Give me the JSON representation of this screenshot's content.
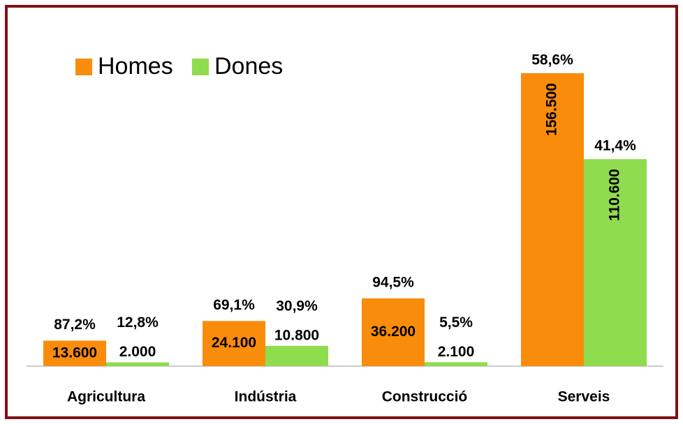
{
  "chart_data": {
    "type": "bar",
    "categories": [
      "Agricultura",
      "Indústria",
      "Construcció",
      "Serveis"
    ],
    "series": [
      {
        "name": "Homes",
        "color": "#fa8c0c",
        "values": [
          13600,
          24100,
          36200,
          156500
        ],
        "value_labels": [
          "13.600",
          "24.100",
          "36.200",
          "156.500"
        ],
        "share_labels": [
          "87,2%",
          "69,1%",
          "94,5%",
          "58,6%"
        ]
      },
      {
        "name": "Dones",
        "color": "#8fdc4e",
        "values": [
          2000,
          10800,
          2100,
          110600
        ],
        "value_labels": [
          "2.000",
          "10.800",
          "2.100",
          "110.600"
        ],
        "share_labels": [
          "12,8%",
          "30,9%",
          "5,5%",
          "41,4%"
        ]
      }
    ],
    "legend": "top-left"
  }
}
